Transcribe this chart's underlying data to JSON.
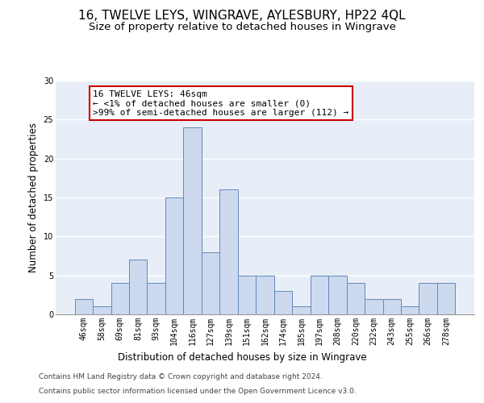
{
  "title": "16, TWELVE LEYS, WINGRAVE, AYLESBURY, HP22 4QL",
  "subtitle": "Size of property relative to detached houses in Wingrave",
  "xlabel": "Distribution of detached houses by size in Wingrave",
  "ylabel": "Number of detached properties",
  "categories": [
    "46sqm",
    "58sqm",
    "69sqm",
    "81sqm",
    "93sqm",
    "104sqm",
    "116sqm",
    "127sqm",
    "139sqm",
    "151sqm",
    "162sqm",
    "174sqm",
    "185sqm",
    "197sqm",
    "208sqm",
    "220sqm",
    "232sqm",
    "243sqm",
    "255sqm",
    "266sqm",
    "278sqm"
  ],
  "values": [
    2,
    1,
    4,
    7,
    4,
    15,
    24,
    8,
    16,
    5,
    5,
    3,
    1,
    5,
    5,
    4,
    2,
    2,
    1,
    4,
    4
  ],
  "bar_color": "#ccd9ee",
  "bar_edge_color": "#6688bb",
  "annotation_text": "16 TWELVE LEYS: 46sqm\n← <1% of detached houses are smaller (0)\n>99% of semi-detached houses are larger (112) →",
  "annotation_box_color": "#ffffff",
  "annotation_box_edge_color": "#cc0000",
  "ylim": [
    0,
    30
  ],
  "yticks": [
    0,
    5,
    10,
    15,
    20,
    25,
    30
  ],
  "background_color": "#e8eef8",
  "grid_color": "#ffffff",
  "footer_line1": "Contains HM Land Registry data © Crown copyright and database right 2024.",
  "footer_line2": "Contains public sector information licensed under the Open Government Licence v3.0.",
  "title_fontsize": 11,
  "subtitle_fontsize": 9.5,
  "axis_label_fontsize": 8.5,
  "tick_fontsize": 7,
  "annotation_fontsize": 8,
  "footer_fontsize": 6.5
}
